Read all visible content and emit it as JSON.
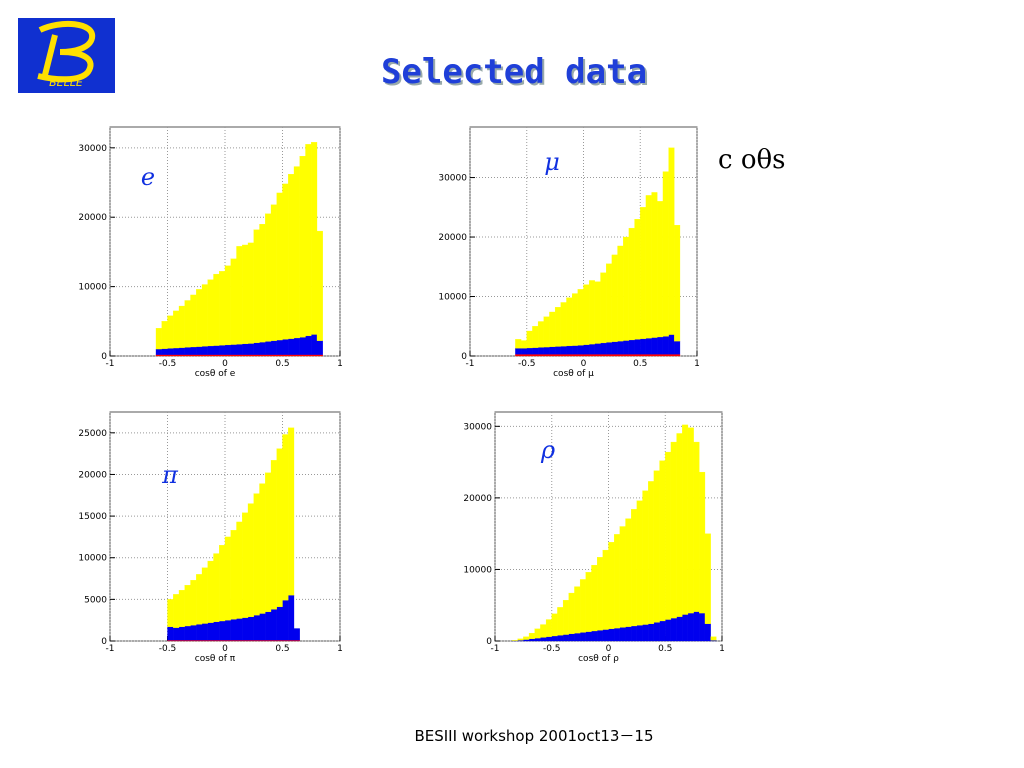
{
  "title": "Selected   data",
  "logo": "BELLE",
  "side_note": "c oθs",
  "footer": "BESIII  workshop  2001oct13－15",
  "chart_data": [
    {
      "type": "histogram",
      "annotation": "e",
      "x_label": "cosθ of e",
      "grid": true,
      "xlim": [
        -1,
        1
      ],
      "ylim": [
        0,
        33000
      ],
      "xticks": [
        -1,
        -0.5,
        0,
        0.5,
        1
      ],
      "yticks": [
        0,
        10000,
        20000,
        30000
      ],
      "bins": [
        -0.6,
        -0.55,
        -0.5,
        -0.45,
        -0.4,
        -0.35,
        -0.3,
        -0.25,
        -0.2,
        -0.15,
        -0.1,
        -0.05,
        0,
        0.05,
        0.1,
        0.15,
        0.2,
        0.25,
        0.3,
        0.35,
        0.4,
        0.45,
        0.5,
        0.55,
        0.6,
        0.65,
        0.7,
        0.75,
        0.8,
        0.85
      ],
      "series": [
        {
          "color": "#ff0000",
          "values": [
            200,
            200,
            200,
            200,
            200,
            200,
            200,
            200,
            200,
            200,
            200,
            200,
            200,
            200,
            200,
            200,
            200,
            200,
            200,
            200,
            200,
            200,
            200,
            200,
            200,
            200,
            200,
            200,
            200
          ]
        },
        {
          "color": "#0000ee",
          "values": [
            800,
            850,
            900,
            950,
            1000,
            1050,
            1100,
            1150,
            1200,
            1250,
            1300,
            1350,
            1400,
            1450,
            1500,
            1550,
            1600,
            1700,
            1800,
            1900,
            2000,
            2100,
            2200,
            2300,
            2400,
            2500,
            2700,
            2900,
            2000
          ]
        },
        {
          "color": "#ffff00",
          "values": [
            3000,
            3950,
            4700,
            5350,
            6000,
            6750,
            7500,
            8250,
            8900,
            9550,
            10300,
            10650,
            11400,
            12350,
            14100,
            14250,
            14500,
            16300,
            17000,
            18400,
            19600,
            21200,
            22400,
            23700,
            24700,
            26100,
            27600,
            27700,
            15800
          ]
        }
      ]
    },
    {
      "type": "histogram",
      "annotation": "μ",
      "x_label": "cosθ of μ",
      "grid": true,
      "xlim": [
        -1,
        1
      ],
      "ylim": [
        0,
        38500
      ],
      "xticks": [
        -1,
        -0.5,
        0,
        0.5,
        1
      ],
      "yticks": [
        0,
        10000,
        20000,
        30000
      ],
      "bins": [
        -0.6,
        -0.55,
        -0.5,
        -0.45,
        -0.4,
        -0.35,
        -0.3,
        -0.25,
        -0.2,
        -0.15,
        -0.1,
        -0.05,
        0,
        0.05,
        0.1,
        0.15,
        0.2,
        0.25,
        0.3,
        0.35,
        0.4,
        0.45,
        0.5,
        0.55,
        0.6,
        0.65,
        0.7,
        0.75,
        0.8,
        0.85
      ],
      "series": [
        {
          "color": "#ff0000",
          "values": [
            300,
            300,
            300,
            300,
            300,
            300,
            300,
            300,
            300,
            300,
            300,
            300,
            300,
            300,
            300,
            300,
            300,
            300,
            300,
            300,
            300,
            300,
            300,
            300,
            300,
            300,
            300,
            300,
            300
          ]
        },
        {
          "color": "#0000ee",
          "values": [
            1000,
            1000,
            1050,
            1100,
            1150,
            1200,
            1250,
            1300,
            1350,
            1400,
            1450,
            1500,
            1600,
            1700,
            1800,
            1900,
            2000,
            2100,
            2200,
            2300,
            2400,
            2500,
            2600,
            2700,
            2800,
            2900,
            3000,
            3300,
            2200
          ]
        },
        {
          "color": "#ffff00",
          "values": [
            1500,
            1300,
            2850,
            3600,
            4350,
            5100,
            5850,
            6600,
            7350,
            8100,
            8750,
            9400,
            10100,
            10700,
            10400,
            11800,
            13200,
            14600,
            16000,
            17400,
            18800,
            20200,
            22100,
            24000,
            24400,
            22800,
            27700,
            31400,
            19500
          ]
        }
      ]
    },
    {
      "type": "histogram",
      "annotation": "π",
      "x_label": "cosθ of π",
      "grid": true,
      "xlim": [
        -1,
        1
      ],
      "ylim": [
        0,
        27500
      ],
      "xticks": [
        -1,
        -0.5,
        0,
        0.5,
        1
      ],
      "yticks": [
        0,
        5000,
        10000,
        15000,
        20000,
        25000
      ],
      "bins": [
        -0.5,
        -0.45,
        -0.4,
        -0.35,
        -0.3,
        -0.25,
        -0.2,
        -0.15,
        -0.1,
        -0.05,
        0,
        0.05,
        0.1,
        0.15,
        0.2,
        0.25,
        0.3,
        0.35,
        0.4,
        0.45,
        0.5,
        0.55,
        0.6,
        0.65
      ],
      "series": [
        {
          "color": "#ff0000",
          "values": [
            100,
            100,
            100,
            100,
            100,
            100,
            100,
            100,
            100,
            100,
            100,
            100,
            100,
            100,
            100,
            100,
            100,
            100,
            100,
            100,
            100,
            100,
            100
          ]
        },
        {
          "color": "#0000ee",
          "values": [
            1600,
            1500,
            1600,
            1700,
            1800,
            1900,
            2000,
            2100,
            2200,
            2300,
            2400,
            2500,
            2600,
            2700,
            2800,
            3000,
            3200,
            3400,
            3700,
            4000,
            4800,
            5400,
            1400
          ]
        },
        {
          "color": "#ffff00",
          "values": [
            3300,
            4000,
            4400,
            4900,
            5400,
            6000,
            6700,
            7400,
            8200,
            9100,
            10000,
            10700,
            11600,
            12600,
            13600,
            14600,
            15600,
            16700,
            17900,
            19000,
            19900,
            20100,
            0
          ]
        }
      ]
    },
    {
      "type": "histogram",
      "annotation": "ρ",
      "x_label": "cosθ of ρ",
      "grid": true,
      "xlim": [
        -1,
        1
      ],
      "ylim": [
        0,
        32000
      ],
      "xticks": [
        -1,
        -0.5,
        0,
        0.5,
        1
      ],
      "yticks": [
        0,
        10000,
        20000,
        30000
      ],
      "bins": [
        -0.85,
        -0.8,
        -0.75,
        -0.7,
        -0.65,
        -0.6,
        -0.55,
        -0.5,
        -0.45,
        -0.4,
        -0.35,
        -0.3,
        -0.25,
        -0.2,
        -0.15,
        -0.1,
        -0.05,
        0,
        0.05,
        0.1,
        0.15,
        0.2,
        0.25,
        0.3,
        0.35,
        0.4,
        0.45,
        0.5,
        0.55,
        0.6,
        0.65,
        0.7,
        0.75,
        0.8,
        0.85,
        0.9,
        0.95
      ],
      "series": [
        {
          "color": "#0000ee",
          "values": [
            50,
            100,
            200,
            300,
            400,
            500,
            600,
            700,
            800,
            900,
            1000,
            1100,
            1200,
            1300,
            1400,
            1500,
            1600,
            1700,
            1800,
            1900,
            2000,
            2100,
            2200,
            2300,
            2400,
            2600,
            2800,
            3000,
            3200,
            3400,
            3700,
            3900,
            4100,
            3900,
            2400,
            100
          ]
        },
        {
          "color": "#ffff00",
          "values": [
            50,
            200,
            400,
            800,
            1300,
            1800,
            2400,
            3100,
            3900,
            4800,
            5700,
            6500,
            7400,
            8300,
            9200,
            10200,
            11100,
            12100,
            13100,
            14100,
            15100,
            16300,
            17400,
            18700,
            19900,
            21200,
            22400,
            23400,
            24600,
            25600,
            26500,
            25900,
            23700,
            19700,
            12600,
            500
          ]
        }
      ]
    }
  ]
}
